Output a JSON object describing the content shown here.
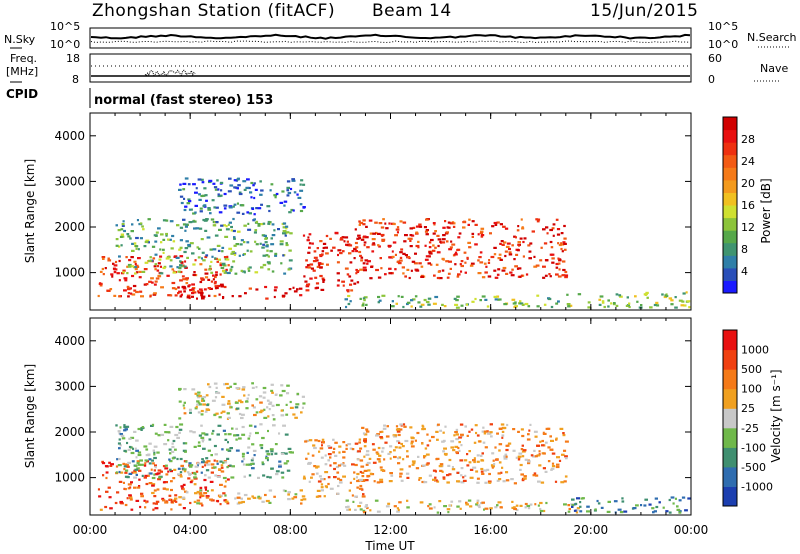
{
  "header": {
    "station": "Zhongshan Station (fitACF)",
    "beam": "Beam 14",
    "date": "15/Jun/2015"
  },
  "noise_panel": {
    "left_label": "N.Sky",
    "left_ticks": [
      "10^5",
      "10^0"
    ],
    "right_label": "N.Search",
    "right_ticks": [
      "10^5",
      "10^0"
    ]
  },
  "freq_panel": {
    "left_label_1": "Freq.",
    "left_label_2": "[MHz]",
    "left_ticks": [
      "18",
      "8"
    ],
    "right_label": "Nave",
    "right_ticks": [
      "60",
      "0"
    ]
  },
  "cpid": {
    "label": "CPID",
    "text": "normal (fast stereo) 153"
  },
  "chart_data": [
    {
      "type": "heatmap",
      "quantity": "power",
      "ylabel": "Slant Range [km]",
      "ylim": [
        180,
        4500
      ],
      "yticks": [
        "1000",
        "2000",
        "3000",
        "4000"
      ],
      "xlim_hours": [
        0,
        24
      ],
      "colorbar": {
        "label": "Power [dB]",
        "ticks": [
          "4",
          "8",
          "12",
          "16",
          "20",
          "24",
          "28"
        ],
        "colors": [
          "#1a1aff",
          "#2a4fb8",
          "#2f7fa8",
          "#3f9470",
          "#56a84a",
          "#8cc43a",
          "#cfe030",
          "#f0c020",
          "#f39a1d",
          "#f57a18",
          "#f25a14",
          "#ee3010",
          "#e81010",
          "#d00000"
        ]
      },
      "scatter_regions": [
        {
          "t": [
            0.3,
            5.5
          ],
          "r": [
            500,
            1400
          ],
          "level": 0.82
        },
        {
          "t": [
            3.5,
            8.5
          ],
          "r": [
            450,
            750
          ],
          "level": 0.95
        },
        {
          "t": [
            1.0,
            8.0
          ],
          "r": [
            1000,
            2200
          ],
          "level": 0.3
        },
        {
          "t": [
            3.5,
            8.5
          ],
          "r": [
            2300,
            3100
          ],
          "level": 0.15
        },
        {
          "t": [
            8.5,
            11.0
          ],
          "r": [
            600,
            1900
          ],
          "level": 0.92
        },
        {
          "t": [
            10.5,
            19.0
          ],
          "r": [
            900,
            2200
          ],
          "level": 0.85
        },
        {
          "t": [
            10.0,
            19.5
          ],
          "r": [
            250,
            520
          ],
          "level": 0.35
        },
        {
          "t": [
            19.0,
            24.0
          ],
          "r": [
            250,
            600
          ],
          "level": 0.4
        }
      ]
    },
    {
      "type": "heatmap",
      "quantity": "velocity",
      "ylabel": "Slant Range [km]",
      "ylim": [
        180,
        4500
      ],
      "yticks": [
        "1000",
        "2000",
        "3000",
        "4000"
      ],
      "xlabel": "Time UT",
      "xticks": [
        "00:00",
        "04:00",
        "08:00",
        "12:00",
        "16:00",
        "20:00",
        "00:00"
      ],
      "xlim_hours": [
        0,
        24
      ],
      "colorbar": {
        "label": "Velocity [m s⁻¹]",
        "ticks": [
          "1000",
          "500",
          "100",
          "25",
          "-25",
          "-100",
          "-500",
          "-1000"
        ],
        "colors": [
          "#1c3fb0",
          "#2f6db0",
          "#3f8f70",
          "#6fb84a",
          "#c8c8c8",
          "#f0a020",
          "#f57a18",
          "#f04010",
          "#e81010"
        ]
      },
      "scatter_regions": [
        {
          "t": [
            0.3,
            5.5
          ],
          "r": [
            300,
            1400
          ],
          "level": 0.8
        },
        {
          "t": [
            3.5,
            8.5
          ],
          "r": [
            450,
            750
          ],
          "level": 0.55
        },
        {
          "t": [
            1.0,
            8.0
          ],
          "r": [
            1000,
            2200
          ],
          "level": 0.35
        },
        {
          "t": [
            3.5,
            8.5
          ],
          "r": [
            2300,
            3100
          ],
          "level": 0.5
        },
        {
          "t": [
            8.5,
            11.0
          ],
          "r": [
            600,
            1900
          ],
          "level": 0.65
        },
        {
          "t": [
            10.5,
            19.0
          ],
          "r": [
            900,
            2200
          ],
          "level": 0.66
        },
        {
          "t": [
            10.0,
            19.5
          ],
          "r": [
            250,
            520
          ],
          "level": 0.55
        },
        {
          "t": [
            19.0,
            24.0
          ],
          "r": [
            250,
            600
          ],
          "level": 0.25
        }
      ]
    }
  ]
}
